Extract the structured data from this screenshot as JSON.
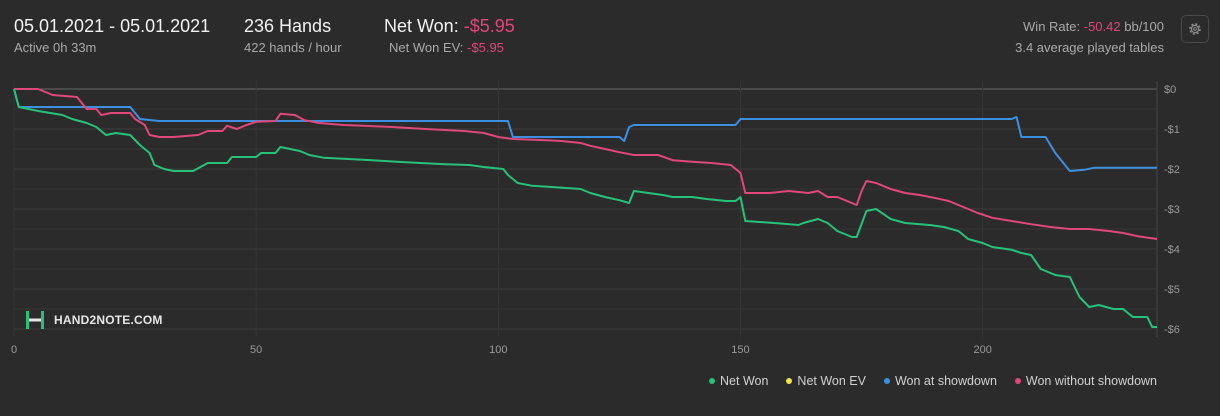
{
  "header": {
    "date_range": "05.01.2021 - 05.01.2021",
    "active": "Active 0h 33m",
    "hands": "236 Hands",
    "hands_per_hour": "422 hands / hour",
    "net_won_label": "Net Won:",
    "net_won_value": "-$5.95",
    "net_won_ev_label": "Net Won  EV:",
    "net_won_ev_value": "-$5.95",
    "win_rate_label": "Win Rate:",
    "win_rate_value": "-50.42",
    "win_rate_unit": "bb/100",
    "tables": "3.4 average played tables"
  },
  "settings_icon": "gear-icon",
  "logo_text": "HAND2NOTE.COM",
  "colors": {
    "net_won": "#27c27a",
    "net_won_ev": "#f0e44a",
    "showdown": "#3d8fe0",
    "nonshowdown": "#e0477a",
    "negative": "#e0477a"
  },
  "chart_data": {
    "type": "line",
    "xlim": [
      0,
      236
    ],
    "ylim": [
      -6,
      0
    ],
    "x_ticks": [
      "0",
      "50",
      "100",
      "150",
      "200"
    ],
    "x_tick_values": [
      0,
      50,
      100,
      150,
      200
    ],
    "y_ticks": [
      "$0",
      "-$1",
      "-$2",
      "-$3",
      "-$4",
      "-$5",
      "-$6"
    ],
    "y_tick_values": [
      0,
      -1,
      -2,
      -3,
      -4,
      -5,
      -6
    ],
    "grid": true,
    "legend_position": "bottom-right",
    "series": [
      {
        "name": "Net Won",
        "color": "#27c27a",
        "points": [
          [
            0,
            0
          ],
          [
            1,
            -0.45
          ],
          [
            5,
            -0.55
          ],
          [
            10,
            -0.65
          ],
          [
            12,
            -0.75
          ],
          [
            15,
            -0.85
          ],
          [
            17,
            -0.95
          ],
          [
            19,
            -1.15
          ],
          [
            21,
            -1.1
          ],
          [
            24,
            -1.15
          ],
          [
            26,
            -1.4
          ],
          [
            28,
            -1.6
          ],
          [
            29,
            -1.9
          ],
          [
            31,
            -2.0
          ],
          [
            33,
            -2.05
          ],
          [
            37,
            -2.05
          ],
          [
            40,
            -1.85
          ],
          [
            44,
            -1.85
          ],
          [
            45,
            -1.7
          ],
          [
            48,
            -1.7
          ],
          [
            50,
            -1.7
          ],
          [
            51,
            -1.6
          ],
          [
            54,
            -1.6
          ],
          [
            55,
            -1.45
          ],
          [
            59,
            -1.55
          ],
          [
            61,
            -1.65
          ],
          [
            64,
            -1.72
          ],
          [
            69,
            -1.75
          ],
          [
            74,
            -1.78
          ],
          [
            79,
            -1.82
          ],
          [
            84,
            -1.85
          ],
          [
            89,
            -1.88
          ],
          [
            94,
            -1.9
          ],
          [
            97,
            -1.95
          ],
          [
            101,
            -2.0
          ],
          [
            102,
            -2.15
          ],
          [
            104,
            -2.35
          ],
          [
            107,
            -2.42
          ],
          [
            111,
            -2.45
          ],
          [
            117,
            -2.5
          ],
          [
            119,
            -2.6
          ],
          [
            122,
            -2.7
          ],
          [
            125,
            -2.78
          ],
          [
            127,
            -2.85
          ],
          [
            128,
            -2.55
          ],
          [
            131,
            -2.6
          ],
          [
            134,
            -2.65
          ],
          [
            136,
            -2.7
          ],
          [
            140,
            -2.7
          ],
          [
            143,
            -2.75
          ],
          [
            147,
            -2.8
          ],
          [
            149,
            -2.8
          ],
          [
            150,
            -2.7
          ],
          [
            151,
            -3.3
          ],
          [
            157,
            -3.35
          ],
          [
            162,
            -3.4
          ],
          [
            163,
            -3.35
          ],
          [
            166,
            -3.25
          ],
          [
            168,
            -3.35
          ],
          [
            170,
            -3.55
          ],
          [
            173,
            -3.7
          ],
          [
            174,
            -3.7
          ],
          [
            176,
            -3.05
          ],
          [
            178,
            -3.0
          ],
          [
            181,
            -3.25
          ],
          [
            184,
            -3.35
          ],
          [
            189,
            -3.4
          ],
          [
            192,
            -3.45
          ],
          [
            195,
            -3.55
          ],
          [
            197,
            -3.75
          ],
          [
            200,
            -3.85
          ],
          [
            202,
            -3.95
          ],
          [
            206,
            -4.02
          ],
          [
            208,
            -4.1
          ],
          [
            210,
            -4.15
          ],
          [
            212,
            -4.5
          ],
          [
            215,
            -4.65
          ],
          [
            218,
            -4.7
          ],
          [
            220,
            -5.2
          ],
          [
            222,
            -5.45
          ],
          [
            224,
            -5.4
          ],
          [
            227,
            -5.5
          ],
          [
            229,
            -5.5
          ],
          [
            231,
            -5.7
          ],
          [
            234,
            -5.7
          ],
          [
            235,
            -5.95
          ],
          [
            236,
            -5.95
          ]
        ]
      },
      {
        "name": "Net Won  EV",
        "color": "#f0e44a",
        "points": []
      },
      {
        "name": "Won at showdown",
        "color": "#3d8fe0",
        "points": [
          [
            0,
            0
          ],
          [
            1,
            -0.45
          ],
          [
            24,
            -0.45
          ],
          [
            26,
            -0.75
          ],
          [
            30,
            -0.8
          ],
          [
            35,
            -0.8
          ],
          [
            100,
            -0.8
          ],
          [
            102,
            -0.8
          ],
          [
            103,
            -1.2
          ],
          [
            113,
            -1.2
          ],
          [
            125,
            -1.2
          ],
          [
            126,
            -1.3
          ],
          [
            127,
            -0.95
          ],
          [
            128,
            -0.9
          ],
          [
            149,
            -0.9
          ],
          [
            150,
            -0.75
          ],
          [
            206,
            -0.75
          ],
          [
            207,
            -0.7
          ],
          [
            208,
            -1.2
          ],
          [
            213,
            -1.2
          ],
          [
            215,
            -1.6
          ],
          [
            218,
            -2.05
          ],
          [
            221,
            -2.02
          ],
          [
            223,
            -1.97
          ],
          [
            236,
            -1.97
          ]
        ]
      },
      {
        "name": "Won without showdown",
        "color": "#e0477a",
        "points": [
          [
            0,
            0
          ],
          [
            5,
            0
          ],
          [
            8,
            -0.15
          ],
          [
            13,
            -0.2
          ],
          [
            15,
            -0.5
          ],
          [
            17,
            -0.5
          ],
          [
            18,
            -0.65
          ],
          [
            20,
            -0.6
          ],
          [
            24,
            -0.6
          ],
          [
            25,
            -0.75
          ],
          [
            27,
            -0.9
          ],
          [
            28,
            -1.15
          ],
          [
            30,
            -1.2
          ],
          [
            33,
            -1.2
          ],
          [
            38,
            -1.15
          ],
          [
            40,
            -1.05
          ],
          [
            43,
            -1.05
          ],
          [
            44,
            -0.92
          ],
          [
            46,
            -1.0
          ],
          [
            48,
            -0.9
          ],
          [
            50,
            -0.82
          ],
          [
            54,
            -0.8
          ],
          [
            55,
            -0.62
          ],
          [
            58,
            -0.65
          ],
          [
            60,
            -0.78
          ],
          [
            63,
            -0.85
          ],
          [
            68,
            -0.9
          ],
          [
            72,
            -0.92
          ],
          [
            78,
            -0.95
          ],
          [
            85,
            -1.0
          ],
          [
            93,
            -1.05
          ],
          [
            97,
            -1.1
          ],
          [
            100,
            -1.2
          ],
          [
            103,
            -1.25
          ],
          [
            110,
            -1.28
          ],
          [
            113,
            -1.3
          ],
          [
            117,
            -1.35
          ],
          [
            119,
            -1.42
          ],
          [
            122,
            -1.5
          ],
          [
            125,
            -1.58
          ],
          [
            128,
            -1.65
          ],
          [
            133,
            -1.65
          ],
          [
            136,
            -1.78
          ],
          [
            140,
            -1.82
          ],
          [
            144,
            -1.85
          ],
          [
            148,
            -1.9
          ],
          [
            150,
            -2.1
          ],
          [
            151,
            -2.6
          ],
          [
            156,
            -2.6
          ],
          [
            160,
            -2.55
          ],
          [
            164,
            -2.6
          ],
          [
            166,
            -2.55
          ],
          [
            168,
            -2.7
          ],
          [
            170,
            -2.7
          ],
          [
            172,
            -2.8
          ],
          [
            174,
            -2.9
          ],
          [
            175,
            -2.55
          ],
          [
            176,
            -2.3
          ],
          [
            178,
            -2.35
          ],
          [
            181,
            -2.5
          ],
          [
            184,
            -2.6
          ],
          [
            187,
            -2.65
          ],
          [
            190,
            -2.72
          ],
          [
            193,
            -2.8
          ],
          [
            196,
            -2.95
          ],
          [
            199,
            -3.1
          ],
          [
            202,
            -3.22
          ],
          [
            206,
            -3.3
          ],
          [
            210,
            -3.38
          ],
          [
            214,
            -3.45
          ],
          [
            218,
            -3.5
          ],
          [
            222,
            -3.5
          ],
          [
            226,
            -3.55
          ],
          [
            229,
            -3.6
          ],
          [
            232,
            -3.68
          ],
          [
            236,
            -3.75
          ]
        ]
      }
    ]
  }
}
